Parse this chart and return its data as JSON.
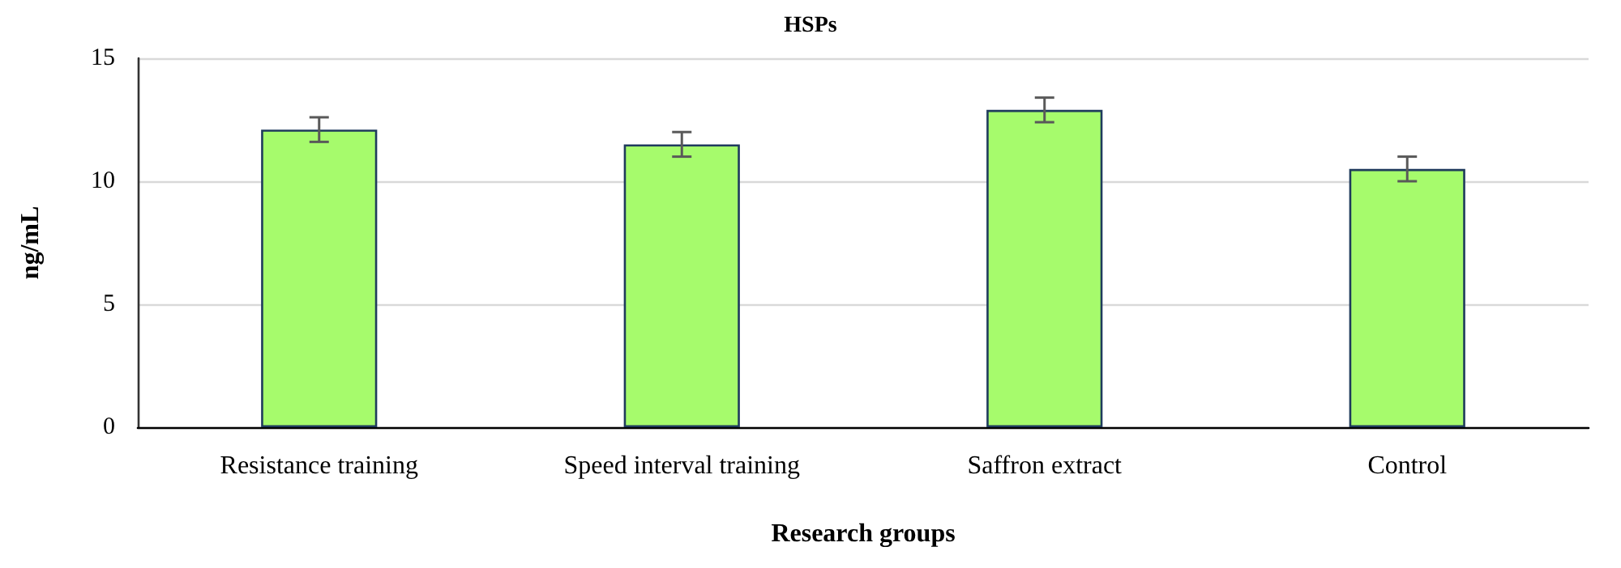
{
  "chart_data": {
    "type": "bar",
    "title": "HSPs",
    "xlabel": "Research groups",
    "ylabel": "ng/mL",
    "categories": [
      "Resistance training",
      "Speed interval training",
      "Saffron extract",
      "Control"
    ],
    "values": [
      12.1,
      11.5,
      12.9,
      10.5
    ],
    "errors": [
      0.5,
      0.5,
      0.5,
      0.5
    ],
    "color": "#a6fb6c",
    "ylim": [
      0,
      15
    ],
    "yticks": [
      0,
      5,
      10,
      15
    ],
    "grid": "y"
  }
}
